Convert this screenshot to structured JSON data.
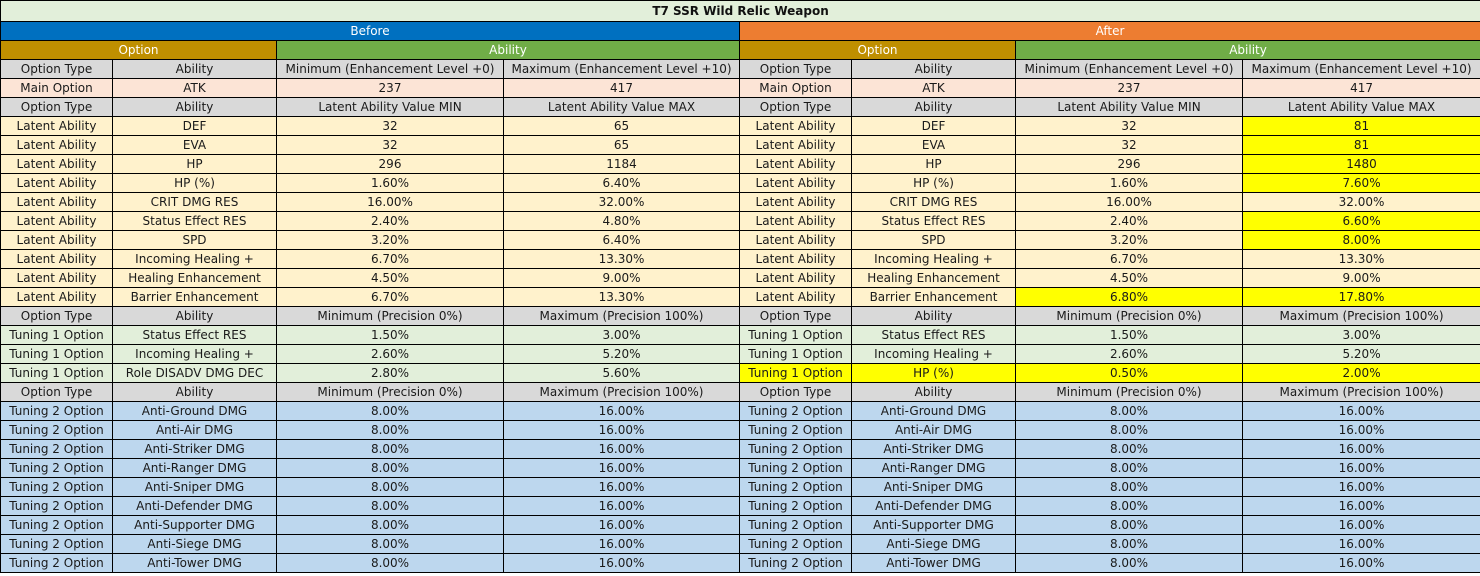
{
  "title": "T7 SSR Wild Relic Weapon",
  "section_before": "Before",
  "section_after": "After",
  "group_option": "Option",
  "group_ability": "Ability",
  "rows": [
    {
      "cls": "hdr",
      "b": [
        "Option Type",
        "Ability",
        "Minimum (Enhancement Level +0)",
        "Maximum (Enhancement Level +10)"
      ],
      "a": [
        "Option Type",
        "Ability",
        "Minimum (Enhancement Level +0)",
        "Maximum (Enhancement Level +10)"
      ]
    },
    {
      "cls": "main",
      "b": [
        "Main Option",
        "ATK",
        "237",
        "417"
      ],
      "a": [
        "Main Option",
        "ATK",
        "237",
        "417"
      ]
    },
    {
      "cls": "hdr",
      "b": [
        "Option Type",
        "Ability",
        "Latent Ability Value MIN",
        "Latent Ability Value MAX"
      ],
      "a": [
        "Option Type",
        "Ability",
        "Latent Ability Value MIN",
        "Latent Ability Value MAX"
      ]
    },
    {
      "cls": "latent",
      "b": [
        "Latent Ability",
        "DEF",
        "32",
        "65"
      ],
      "a": [
        "Latent Ability",
        "DEF",
        "32",
        "81"
      ],
      "hl": [
        3
      ]
    },
    {
      "cls": "latent",
      "b": [
        "Latent Ability",
        "EVA",
        "32",
        "65"
      ],
      "a": [
        "Latent Ability",
        "EVA",
        "32",
        "81"
      ],
      "hl": [
        3
      ]
    },
    {
      "cls": "latent",
      "b": [
        "Latent Ability",
        "HP",
        "296",
        "1184"
      ],
      "a": [
        "Latent Ability",
        "HP",
        "296",
        "1480"
      ],
      "hl": [
        3
      ]
    },
    {
      "cls": "latent",
      "b": [
        "Latent Ability",
        "HP (%)",
        "1.60%",
        "6.40%"
      ],
      "a": [
        "Latent Ability",
        "HP (%)",
        "1.60%",
        "7.60%"
      ],
      "hl": [
        3
      ]
    },
    {
      "cls": "latent",
      "b": [
        "Latent Ability",
        "CRIT DMG RES",
        "16.00%",
        "32.00%"
      ],
      "a": [
        "Latent Ability",
        "CRIT DMG RES",
        "16.00%",
        "32.00%"
      ],
      "hl": []
    },
    {
      "cls": "latent",
      "b": [
        "Latent Ability",
        "Status Effect RES",
        "2.40%",
        "4.80%"
      ],
      "a": [
        "Latent Ability",
        "Status Effect RES",
        "2.40%",
        "6.60%"
      ],
      "hl": [
        3
      ]
    },
    {
      "cls": "latent",
      "b": [
        "Latent Ability",
        "SPD",
        "3.20%",
        "6.40%"
      ],
      "a": [
        "Latent Ability",
        "SPD",
        "3.20%",
        "8.00%"
      ],
      "hl": [
        3
      ]
    },
    {
      "cls": "latent",
      "b": [
        "Latent Ability",
        "Incoming Healing +",
        "6.70%",
        "13.30%"
      ],
      "a": [
        "Latent Ability",
        "Incoming Healing +",
        "6.70%",
        "13.30%"
      ],
      "hl": []
    },
    {
      "cls": "latent",
      "b": [
        "Latent Ability",
        "Healing Enhancement",
        "4.50%",
        "9.00%"
      ],
      "a": [
        "Latent Ability",
        "Healing Enhancement",
        "4.50%",
        "9.00%"
      ],
      "hl": []
    },
    {
      "cls": "latent",
      "b": [
        "Latent Ability",
        "Barrier Enhancement",
        "6.70%",
        "13.30%"
      ],
      "a": [
        "Latent Ability",
        "Barrier Enhancement",
        "6.80%",
        "17.80%"
      ],
      "hl": [
        2,
        3
      ]
    },
    {
      "cls": "hdr",
      "b": [
        "Option Type",
        "Ability",
        "Minimum (Precision 0%)",
        "Maximum (Precision 100%)"
      ],
      "a": [
        "Option Type",
        "Ability",
        "Minimum (Precision 0%)",
        "Maximum (Precision 100%)"
      ]
    },
    {
      "cls": "tune1",
      "b": [
        "Tuning 1 Option",
        "Status Effect RES",
        "1.50%",
        "3.00%"
      ],
      "a": [
        "Tuning 1 Option",
        "Status Effect RES",
        "1.50%",
        "3.00%"
      ],
      "hl": []
    },
    {
      "cls": "tune1",
      "b": [
        "Tuning 1 Option",
        "Incoming Healing +",
        "2.60%",
        "5.20%"
      ],
      "a": [
        "Tuning 1 Option",
        "Incoming Healing +",
        "2.60%",
        "5.20%"
      ],
      "hl": []
    },
    {
      "cls": "tune1",
      "b": [
        "Tuning 1 Option",
        "Role DISADV DMG DEC",
        "2.80%",
        "5.60%"
      ],
      "a": [
        "Tuning 1 Option",
        "HP (%)",
        "0.50%",
        "2.00%"
      ],
      "hl": [
        0,
        1,
        2,
        3
      ]
    },
    {
      "cls": "hdr",
      "b": [
        "Option Type",
        "Ability",
        "Minimum (Precision 0%)",
        "Maximum (Precision 100%)"
      ],
      "a": [
        "Option Type",
        "Ability",
        "Minimum (Precision 0%)",
        "Maximum (Precision 100%)"
      ]
    },
    {
      "cls": "tune2",
      "b": [
        "Tuning 2 Option",
        "Anti-Ground DMG",
        "8.00%",
        "16.00%"
      ],
      "a": [
        "Tuning 2 Option",
        "Anti-Ground DMG",
        "8.00%",
        "16.00%"
      ],
      "hl": []
    },
    {
      "cls": "tune2",
      "b": [
        "Tuning 2 Option",
        "Anti-Air DMG",
        "8.00%",
        "16.00%"
      ],
      "a": [
        "Tuning 2 Option",
        "Anti-Air DMG",
        "8.00%",
        "16.00%"
      ],
      "hl": []
    },
    {
      "cls": "tune2",
      "b": [
        "Tuning 2 Option",
        "Anti-Striker DMG",
        "8.00%",
        "16.00%"
      ],
      "a": [
        "Tuning 2 Option",
        "Anti-Striker DMG",
        "8.00%",
        "16.00%"
      ],
      "hl": []
    },
    {
      "cls": "tune2",
      "b": [
        "Tuning 2 Option",
        "Anti-Ranger DMG",
        "8.00%",
        "16.00%"
      ],
      "a": [
        "Tuning 2 Option",
        "Anti-Ranger DMG",
        "8.00%",
        "16.00%"
      ],
      "hl": []
    },
    {
      "cls": "tune2",
      "b": [
        "Tuning 2 Option",
        "Anti-Sniper DMG",
        "8.00%",
        "16.00%"
      ],
      "a": [
        "Tuning 2 Option",
        "Anti-Sniper DMG",
        "8.00%",
        "16.00%"
      ],
      "hl": []
    },
    {
      "cls": "tune2",
      "b": [
        "Tuning 2 Option",
        "Anti-Defender DMG",
        "8.00%",
        "16.00%"
      ],
      "a": [
        "Tuning 2 Option",
        "Anti-Defender DMG",
        "8.00%",
        "16.00%"
      ],
      "hl": []
    },
    {
      "cls": "tune2",
      "b": [
        "Tuning 2 Option",
        "Anti-Supporter DMG",
        "8.00%",
        "16.00%"
      ],
      "a": [
        "Tuning 2 Option",
        "Anti-Supporter DMG",
        "8.00%",
        "16.00%"
      ],
      "hl": []
    },
    {
      "cls": "tune2",
      "b": [
        "Tuning 2 Option",
        "Anti-Siege DMG",
        "8.00%",
        "16.00%"
      ],
      "a": [
        "Tuning 2 Option",
        "Anti-Siege DMG",
        "8.00%",
        "16.00%"
      ],
      "hl": []
    },
    {
      "cls": "tune2",
      "b": [
        "Tuning 2 Option",
        "Anti-Tower DMG",
        "8.00%",
        "16.00%"
      ],
      "a": [
        "Tuning 2 Option",
        "Anti-Tower DMG",
        "8.00%",
        "16.00%"
      ],
      "hl": []
    }
  ]
}
